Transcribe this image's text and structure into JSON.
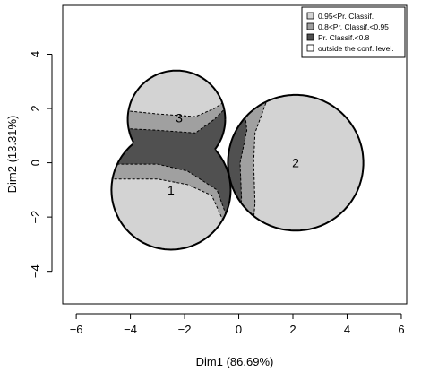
{
  "chart_data": {
    "type": "scatter",
    "title": "",
    "xlabel": "Dim1 (86.69%)",
    "ylabel": "Dim2 (13.31%)",
    "xlim": [
      -6.5,
      6.2
    ],
    "ylim": [
      -5.2,
      5.8
    ],
    "x_ticks": [
      -6,
      -4,
      -2,
      0,
      2,
      4,
      6
    ],
    "y_ticks": [
      -4,
      -2,
      0,
      2,
      4
    ],
    "x_tick_labels": [
      "−6",
      "−4",
      "−2",
      "0",
      "2",
      "4",
      "6"
    ],
    "y_tick_labels": [
      "−4",
      "−2",
      "0",
      "2",
      "4"
    ],
    "grid": false,
    "legend_position": "top-right",
    "legend": [
      {
        "label": "0.95<Pr. Classif.",
        "color": "#d3d3d3"
      },
      {
        "label": "0.8<Pr. Classif.<0.95",
        "color": "#a0a0a0"
      },
      {
        "label": "Pr. Classif.<0.8",
        "color": "#505050"
      },
      {
        "label": "outside the conf. level.",
        "color": "#ffffff"
      }
    ],
    "groups": [
      {
        "name": "1",
        "center": [
          -2.5,
          -1.0
        ],
        "radius": 2.2
      },
      {
        "name": "2",
        "center": [
          2.1,
          0.0
        ],
        "radius": 2.5
      },
      {
        "name": "3",
        "center": [
          -2.3,
          1.6
        ],
        "radius": 1.8
      }
    ],
    "colors": {
      "high": "#d3d3d3",
      "mid": "#a0a0a0",
      "low": "#505050",
      "outside": "#ffffff"
    }
  }
}
